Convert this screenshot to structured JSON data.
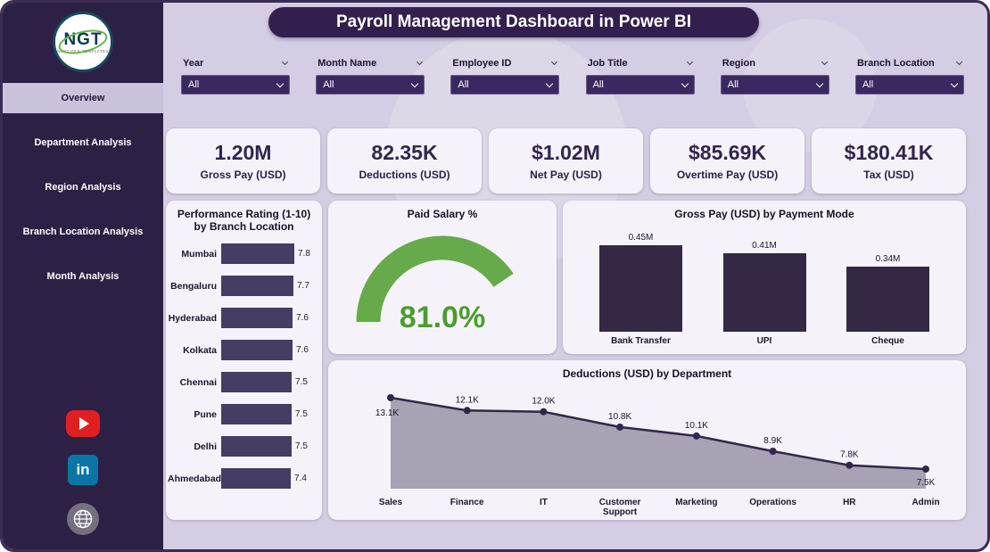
{
  "app": {
    "title": "Payroll Management Dashboard in Power BI"
  },
  "sidebar": {
    "logo": {
      "text": "NGT",
      "subtext": "NEXT GEN TEMPLATES"
    },
    "items": [
      {
        "label": "Overview",
        "active": true
      },
      {
        "label": "Department Analysis",
        "active": false
      },
      {
        "label": "Region Analysis",
        "active": false
      },
      {
        "label": "Branch Location Analysis",
        "active": false
      },
      {
        "label": "Month Analysis",
        "active": false
      }
    ],
    "social": {
      "linkedin_text": "in"
    },
    "icons": {
      "youtube": "play-triangle",
      "linkedin": "in-monogram",
      "website": "globe"
    }
  },
  "filters": [
    {
      "label": "Year",
      "value": "All"
    },
    {
      "label": "Month Name",
      "value": "All"
    },
    {
      "label": "Employee ID",
      "value": "All"
    },
    {
      "label": "Job Title",
      "value": "All"
    },
    {
      "label": "Region",
      "value": "All"
    },
    {
      "label": "Branch Location",
      "value": "All"
    }
  ],
  "kpis": [
    {
      "value": "1.20M",
      "label": "Gross Pay (USD)"
    },
    {
      "value": "82.35K",
      "label": "Deductions (USD)"
    },
    {
      "value": "$1.02M",
      "label": "Net Pay (USD)"
    },
    {
      "value": "$85.69K",
      "label": "Overtime Pay (USD)"
    },
    {
      "value": "$180.41K",
      "label": "Tax (USD)"
    }
  ],
  "colors": {
    "dark_purple": "#2d2045",
    "bar": "#473c63",
    "bar_dark": "#352845",
    "gauge_green": "#67aa4b",
    "gauge_text": "#4c9c2d",
    "area_fill": "#a9a1b4",
    "line": "#32274b",
    "youtube_red": "#e02020",
    "linkedin_blue": "#0b76a6"
  },
  "chart_data": [
    {
      "type": "bar",
      "orientation": "horizontal",
      "title": "Performance Rating (1-10) by Branch Location",
      "categories": [
        "Mumbai",
        "Bengaluru",
        "Hyderabad",
        "Kolkata",
        "Chennai",
        "Pune",
        "Delhi",
        "Ahmedabad"
      ],
      "values": [
        7.8,
        7.7,
        7.6,
        7.6,
        7.5,
        7.5,
        7.5,
        7.4
      ],
      "xlim": [
        0,
        8
      ],
      "legend": false,
      "grid": false
    },
    {
      "type": "gauge",
      "title": "Paid Salary %",
      "value": 81.0,
      "label": "81.0%",
      "min": 0,
      "max": 100
    },
    {
      "type": "bar",
      "orientation": "vertical",
      "title": "Gross Pay (USD) by Payment Mode",
      "categories": [
        "Bank Transfer",
        "UPI",
        "Cheque"
      ],
      "values": [
        0.45,
        0.41,
        0.34
      ],
      "labels": [
        "0.45M",
        "0.41M",
        "0.34M"
      ],
      "ylabel": "Gross Pay (USD)",
      "legend": false,
      "grid": false
    },
    {
      "type": "area",
      "title": "Deductions (USD) by Department",
      "categories": [
        "Sales",
        "Finance",
        "IT",
        "Customer Support",
        "Marketing",
        "Operations",
        "HR",
        "Admin"
      ],
      "values": [
        13.1,
        12.1,
        12.0,
        10.8,
        10.1,
        8.9,
        7.8,
        7.5
      ],
      "labels": [
        "13.1K",
        "12.1K",
        "12.0K",
        "10.8K",
        "10.1K",
        "8.9K",
        "7.8K",
        "7.5K"
      ],
      "ylabel": "Deductions (USD)",
      "legend": false,
      "grid": false
    }
  ]
}
